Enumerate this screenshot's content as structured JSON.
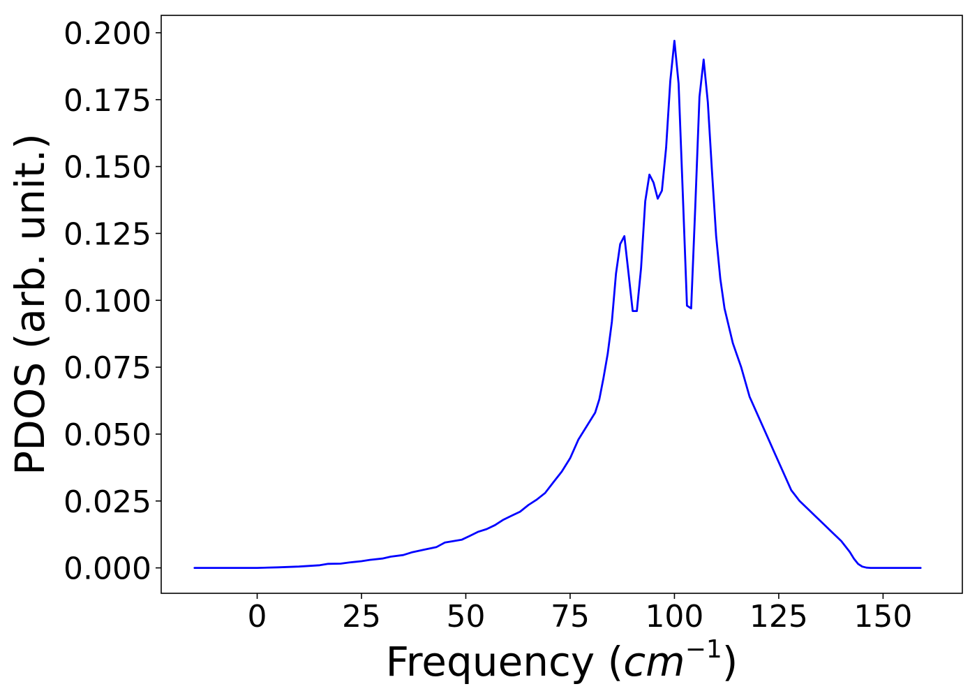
{
  "chart_data": {
    "type": "line",
    "title": "",
    "xlabel": "Frequency (",
    "xlabel_math": "cm",
    "xlabel_sup": "−1",
    "xlabel_end": ")",
    "ylabel": "PDOS (arb. unit.)",
    "xlim": [
      -23,
      169
    ],
    "ylim": [
      -0.0095,
      0.2065
    ],
    "xticks": [
      0,
      25,
      50,
      75,
      100,
      125,
      150
    ],
    "xtick_labels": [
      "0",
      "25",
      "50",
      "75",
      "100",
      "125",
      "150"
    ],
    "yticks": [
      0.0,
      0.025,
      0.05,
      0.075,
      0.1,
      0.125,
      0.15,
      0.175,
      0.2
    ],
    "ytick_labels": [
      "0.000",
      "0.025",
      "0.050",
      "0.075",
      "0.100",
      "0.125",
      "0.150",
      "0.175",
      "0.200"
    ],
    "grid": false,
    "series": [
      {
        "name": "",
        "color": "#0000ff",
        "x": [
          -15,
          -10,
          -5,
          0,
          5,
          10,
          15,
          17,
          20,
          22,
          25,
          27,
          30,
          32,
          35,
          37,
          40,
          43,
          45,
          47,
          49,
          51,
          53,
          55,
          57,
          59,
          61,
          63,
          65,
          67,
          69,
          71,
          73,
          75,
          77,
          79,
          81,
          82,
          83,
          84,
          85,
          86,
          87,
          88,
          89,
          90,
          91,
          92,
          93,
          94,
          95,
          96,
          97,
          98,
          99,
          100,
          101,
          102,
          103,
          104,
          105,
          106,
          107,
          108,
          109,
          110,
          111,
          112,
          114,
          116,
          118,
          120,
          122,
          124,
          126,
          128,
          130,
          132,
          134,
          136,
          138,
          140,
          142,
          143,
          144,
          145,
          146,
          147,
          148,
          150,
          155,
          159
        ],
        "y": [
          0.0,
          0.0,
          0.0,
          0.0,
          0.0002,
          0.0005,
          0.001,
          0.0015,
          0.0016,
          0.002,
          0.0025,
          0.003,
          0.0035,
          0.0042,
          0.0048,
          0.0058,
          0.0068,
          0.0078,
          0.0095,
          0.01,
          0.0105,
          0.012,
          0.0135,
          0.0145,
          0.016,
          0.018,
          0.0195,
          0.021,
          0.0235,
          0.0255,
          0.028,
          0.032,
          0.036,
          0.041,
          0.048,
          0.053,
          0.058,
          0.063,
          0.071,
          0.08,
          0.092,
          0.11,
          0.121,
          0.124,
          0.11,
          0.096,
          0.096,
          0.112,
          0.137,
          0.147,
          0.144,
          0.138,
          0.141,
          0.157,
          0.182,
          0.197,
          0.181,
          0.14,
          0.098,
          0.097,
          0.135,
          0.176,
          0.19,
          0.174,
          0.148,
          0.124,
          0.108,
          0.097,
          0.084,
          0.075,
          0.064,
          0.057,
          0.05,
          0.043,
          0.036,
          0.029,
          0.025,
          0.022,
          0.019,
          0.016,
          0.013,
          0.01,
          0.006,
          0.0035,
          0.0015,
          0.0005,
          0.0001,
          0.0,
          0.0,
          0.0,
          0.0,
          0.0
        ]
      }
    ]
  }
}
